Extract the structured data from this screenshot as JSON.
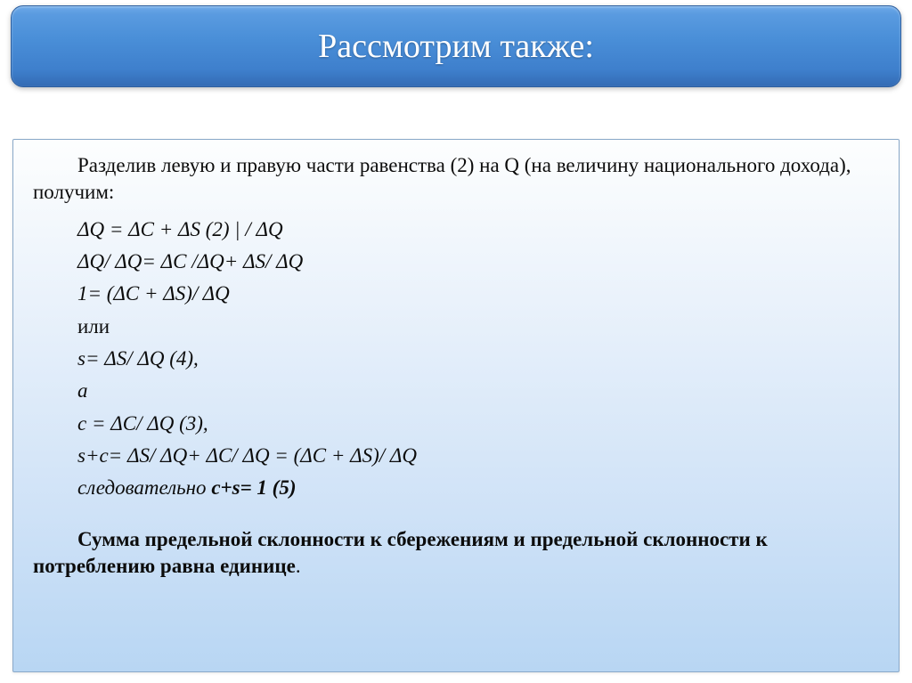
{
  "title_banner": {
    "text": "Рассмотрим также:",
    "text_color": "#ffffff",
    "gradient_top": "#6da9e8",
    "gradient_bottom": "#336bb4",
    "border_color": "#2d5f9f",
    "font_size_pt": 28
  },
  "content_panel": {
    "border_color": "#8aa9c9",
    "gradient_top": "#fdfefe",
    "gradient_bottom": "#b8d6f3",
    "text_color": "#0c0c0c",
    "font_size_pt": 18,
    "intro": "Разделив левую и правую части равенства (2) на Q (на величину национального дохода), получим:",
    "equations": [
      "ΔQ = ΔC + ΔS (2)   | / ΔQ",
      "ΔQ/ ΔQ= ΔC /ΔQ+ ΔS/ ΔQ",
      "1= (ΔC + ΔS)/ ΔQ",
      "или",
      "s= ΔS/ ΔQ (4),",
      "а",
      "с = ΔC/ ΔQ (3),",
      "s+c= ΔS/ ΔQ+ ΔC/ ΔQ = (ΔC + ΔS)/ ΔQ"
    ],
    "consequently_prefix": "следовательно ",
    "consequently_bold": "c+s= 1 (5)",
    "conclusion": "Сумма предельной склонности к сбережениям и предельной склонности к потреблению равна единице",
    "conclusion_suffix": "."
  }
}
